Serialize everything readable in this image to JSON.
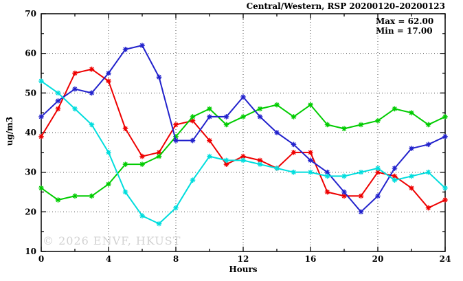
{
  "title": "Central/Western, RSP 20200120–20200123",
  "annotation": {
    "max_label": "Max = 62.00",
    "min_label": "Min = 17.00"
  },
  "watermark": "© 2026 ENVF, HKUST",
  "chart_data": {
    "type": "line",
    "title": "Central/Western, RSP 20200120–20200123",
    "xlabel": "Hours",
    "ylabel": "ug/m3",
    "xlim": [
      0,
      24
    ],
    "ylim": [
      10,
      70
    ],
    "xticks_major": [
      0,
      4,
      8,
      12,
      16,
      20,
      24
    ],
    "xticks_minor": [
      2,
      6,
      10,
      14,
      18,
      22
    ],
    "yticks_major": [
      10,
      20,
      30,
      40,
      50,
      60,
      70
    ],
    "yticks_minor": [
      15,
      25,
      35,
      45,
      55,
      65
    ],
    "grid_x": [
      4,
      8,
      12,
      16,
      20
    ],
    "grid_y": [
      20,
      30,
      40,
      50,
      60
    ],
    "grid_on": true,
    "legend_position": "none",
    "marker": "asterisk",
    "x": [
      0,
      1,
      2,
      3,
      4,
      5,
      6,
      7,
      8,
      9,
      10,
      11,
      12,
      13,
      14,
      15,
      16,
      17,
      18,
      19,
      20,
      21,
      22,
      23,
      24
    ],
    "series": [
      {
        "name": "day-1-red",
        "color": "#ee0000",
        "values": [
          39,
          46,
          55,
          56,
          53,
          41,
          34,
          35,
          42,
          43,
          38,
          32,
          34,
          33,
          31,
          35,
          35,
          25,
          24,
          24,
          30,
          29,
          26,
          21,
          23
        ]
      },
      {
        "name": "day-2-green",
        "color": "#00cc00",
        "values": [
          26,
          23,
          24,
          24,
          27,
          32,
          32,
          34,
          39,
          44,
          46,
          42,
          44,
          46,
          47,
          44,
          47,
          42,
          41,
          42,
          43,
          46,
          45,
          42,
          44
        ]
      },
      {
        "name": "day-3-blue",
        "color": "#2222cc",
        "values": [
          44,
          48,
          51,
          50,
          55,
          61,
          62,
          54,
          38,
          38,
          44,
          44,
          49,
          44,
          40,
          37,
          33,
          30,
          25,
          20,
          24,
          31,
          36,
          37,
          39
        ]
      },
      {
        "name": "day-4-cyan",
        "color": "#00dddd",
        "values": [
          53,
          50,
          46,
          42,
          35,
          25,
          19,
          17,
          21,
          28,
          34,
          33,
          33,
          32,
          31,
          30,
          30,
          29,
          29,
          30,
          31,
          28,
          29,
          30,
          26
        ]
      }
    ],
    "stats": {
      "max": 62.0,
      "min": 17.0
    },
    "frame_color": "#000000",
    "grid_color": "#444444"
  }
}
